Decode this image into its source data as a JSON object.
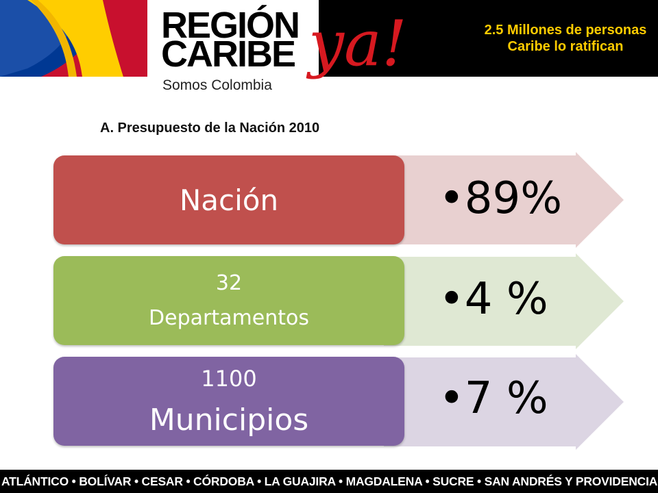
{
  "header": {
    "logo_line1": "REGIÓN",
    "logo_line2": "CARIBE",
    "logo_tagline": "Somos Colombia",
    "logo_mark": "ya!",
    "headline": "2.5 Millones de personas Caribe lo ratifican",
    "headline_color": "#ffcc00"
  },
  "subtitle": "A. Presupuesto de la Nación 2010",
  "rows": [
    {
      "label_top": "",
      "label_main": "Nación",
      "value": "•89%",
      "box_color": "#c0504d",
      "arrow_color": "#e8d0d0"
    },
    {
      "label_top": "32",
      "label_main": "Departamentos",
      "value": "•4 %",
      "box_color": "#9bbb59",
      "arrow_color": "#dfe8d3"
    },
    {
      "label_top": "1100",
      "label_main": "Municipios",
      "value": "•7 %",
      "box_color": "#8064a2",
      "arrow_color": "#dcd5e3"
    }
  ],
  "footer": "ATLÁNTICO • BOLÍVAR • CESAR • CÓRDOBA • LA GUAJIRA • MAGDALENA • SUCRE • SAN ANDRÉS Y PROVIDENCIA"
}
